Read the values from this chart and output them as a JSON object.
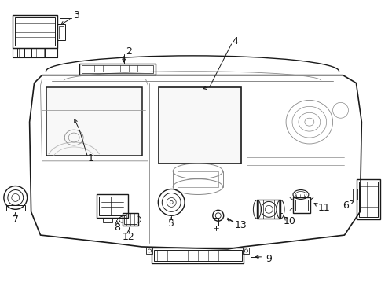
{
  "background_color": "#ffffff",
  "line_color": "#1a1a1a",
  "gray_color": "#888888",
  "light_gray": "#bbbbbb",
  "figsize": [
    4.9,
    3.6
  ],
  "dpi": 100
}
